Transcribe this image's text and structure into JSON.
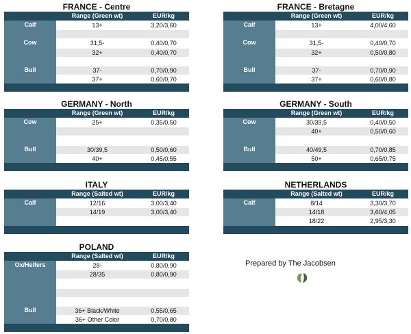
{
  "credit": "Prepared by The Jacobsen",
  "tables": [
    {
      "title": "FRANCE - Centre",
      "h_range": "Range (Green wt)",
      "h_price": "EUR/kg",
      "groups": [
        {
          "label": "Calf",
          "row": 0
        },
        {
          "label": "Cow",
          "row": 2
        },
        {
          "label": "Bull",
          "row": 5
        }
      ],
      "rows": [
        {
          "range": "13+",
          "price": "3,20/3,60"
        },
        {
          "range": "",
          "price": ""
        },
        {
          "range": "31,5-",
          "price": "0,40/0,70"
        },
        {
          "range": "32+",
          "price": "0,40/0,70"
        },
        {
          "range": "",
          "price": ""
        },
        {
          "range": "37-",
          "price": "0,70/0,90"
        },
        {
          "range": "37+",
          "price": "0,60/0,70"
        }
      ]
    },
    {
      "title": "FRANCE - Bretagne",
      "h_range": "Range (Green wt)",
      "h_price": "EUR/kg",
      "groups": [
        {
          "label": "Calf",
          "row": 0
        },
        {
          "label": "Cow",
          "row": 2
        },
        {
          "label": "Bull",
          "row": 5
        }
      ],
      "rows": [
        {
          "range": "13+",
          "price": "4,00/4,60"
        },
        {
          "range": "",
          "price": ""
        },
        {
          "range": "31,5-",
          "price": "0,40/0,70"
        },
        {
          "range": "32+",
          "price": "0,50/0,80"
        },
        {
          "range": "",
          "price": ""
        },
        {
          "range": "37-",
          "price": "0,70/0,90"
        },
        {
          "range": "37+",
          "price": "0,60/0,80"
        }
      ]
    },
    {
      "title": "GERMANY - North",
      "h_range": "Range (Green wt)",
      "h_price": "EUR/kg",
      "groups": [
        {
          "label": "Cow",
          "row": 0
        },
        {
          "label": "Bull",
          "row": 3
        }
      ],
      "rows": [
        {
          "range": "25+",
          "price": "0,35/0,50"
        },
        {
          "range": "",
          "price": ""
        },
        {
          "range": "",
          "price": ""
        },
        {
          "range": "30/39,5",
          "price": "0,50/0,60"
        },
        {
          "range": "40+",
          "price": "0,45/0,55"
        }
      ]
    },
    {
      "title": "GERMANY - South",
      "h_range": "Range (Green wt)",
      "h_price": "EUR/kg",
      "groups": [
        {
          "label": "Cow",
          "row": 0
        },
        {
          "label": "Bull",
          "row": 3
        }
      ],
      "rows": [
        {
          "range": "30/39,5",
          "price": "0,40/0,50"
        },
        {
          "range": "40+",
          "price": "0,50/0,60"
        },
        {
          "range": "",
          "price": ""
        },
        {
          "range": "40/49,5",
          "price": "0,70/0,85"
        },
        {
          "range": "50+",
          "price": "0,65/0,75"
        }
      ]
    },
    {
      "title": "ITALY",
      "h_range": "Range (Salted wt)",
      "h_price": "EUR/kg",
      "groups": [
        {
          "label": "Calf",
          "row": 0
        }
      ],
      "rows": [
        {
          "range": "12/16",
          "price": "3,00/3,40"
        },
        {
          "range": "14/19",
          "price": "3,00/3,40"
        },
        {
          "range": "",
          "price": ""
        }
      ]
    },
    {
      "title": "NETHERLANDS",
      "h_range": "Range (Salted wt)",
      "h_price": "EUR/kg",
      "groups": [
        {
          "label": "Calf",
          "row": 0
        }
      ],
      "rows": [
        {
          "range": "8/14",
          "price": "3,30/3,70"
        },
        {
          "range": "14/18",
          "price": "3,60/4,05"
        },
        {
          "range": "18/22",
          "price": "2,95/3,30"
        }
      ]
    },
    {
      "title": "POLAND",
      "h_range": "Range (Salted wt)",
      "h_price": "EUR/kg",
      "groups": [
        {
          "label": "Ox/Heifers",
          "row": 0
        },
        {
          "label": "Bull",
          "row": 5
        }
      ],
      "rows": [
        {
          "range": "28-",
          "price": "0,80/0,90"
        },
        {
          "range": "28/35",
          "price": "0,80/0,90"
        },
        {
          "range": "",
          "price": ""
        },
        {
          "range": "",
          "price": ""
        },
        {
          "range": "",
          "price": ""
        },
        {
          "range": "36+ Black/White",
          "price": "0,55/0,65"
        },
        {
          "range": "36+ Other Color",
          "price": "0,70/0,80"
        }
      ]
    }
  ]
}
